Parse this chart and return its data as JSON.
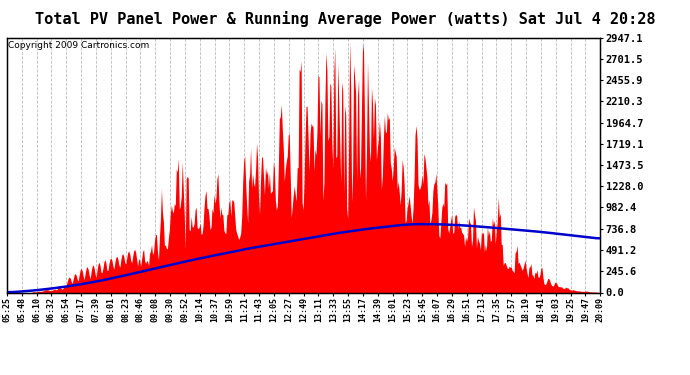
{
  "title": "Total PV Panel Power & Running Average Power (watts) Sat Jul 4 20:28",
  "copyright": "Copyright 2009 Cartronics.com",
  "ylabel_right": [
    "2947.1",
    "2701.5",
    "2455.9",
    "2210.3",
    "1964.7",
    "1719.1",
    "1473.5",
    "1228.0",
    "982.4",
    "736.8",
    "491.2",
    "245.6",
    "0.0"
  ],
  "ymax": 2947.1,
  "ymin": 0.0,
  "background_color": "#ffffff",
  "plot_bg_color": "#ffffff",
  "grid_color": "#bbbbbb",
  "fill_color": "#ff0000",
  "line_color": "#0000cc",
  "title_fontsize": 11,
  "x_labels": [
    "05:25",
    "05:48",
    "06:10",
    "06:32",
    "06:54",
    "07:17",
    "07:39",
    "08:01",
    "08:23",
    "08:46",
    "09:08",
    "09:30",
    "09:52",
    "10:14",
    "10:37",
    "10:59",
    "11:21",
    "11:43",
    "12:05",
    "12:27",
    "12:49",
    "13:11",
    "13:33",
    "13:55",
    "14:17",
    "14:39",
    "15:01",
    "15:23",
    "15:45",
    "16:07",
    "16:29",
    "16:51",
    "17:13",
    "17:35",
    "17:57",
    "18:19",
    "18:41",
    "19:03",
    "19:25",
    "19:47",
    "20:09"
  ]
}
